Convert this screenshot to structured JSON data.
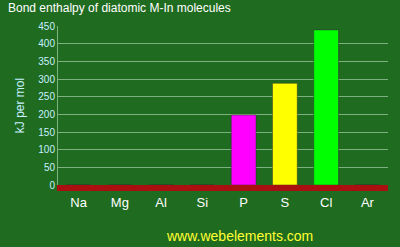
{
  "chart_data": {
    "type": "bar",
    "title": "Bond enthalpy of diatomic M-In molecules",
    "y_label": "kJ per mol",
    "categories": [
      "Na",
      "Mg",
      "Al",
      "Si",
      "P",
      "S",
      "Cl",
      "Ar"
    ],
    "values": [
      0,
      0,
      0,
      0,
      198,
      288,
      439,
      0
    ],
    "colors": [
      "#b4a8f0",
      "#b4a8f0",
      "#ffff00",
      "#a0a0a0",
      "#ff00ff",
      "#ffff00",
      "#00ff00",
      "#ffa500"
    ],
    "ylim": [
      0,
      450
    ],
    "yticks": [
      0,
      50,
      100,
      150,
      200,
      250,
      300,
      350,
      400,
      450
    ],
    "grid": true,
    "annotations": [
      "www.webelements.com"
    ]
  }
}
